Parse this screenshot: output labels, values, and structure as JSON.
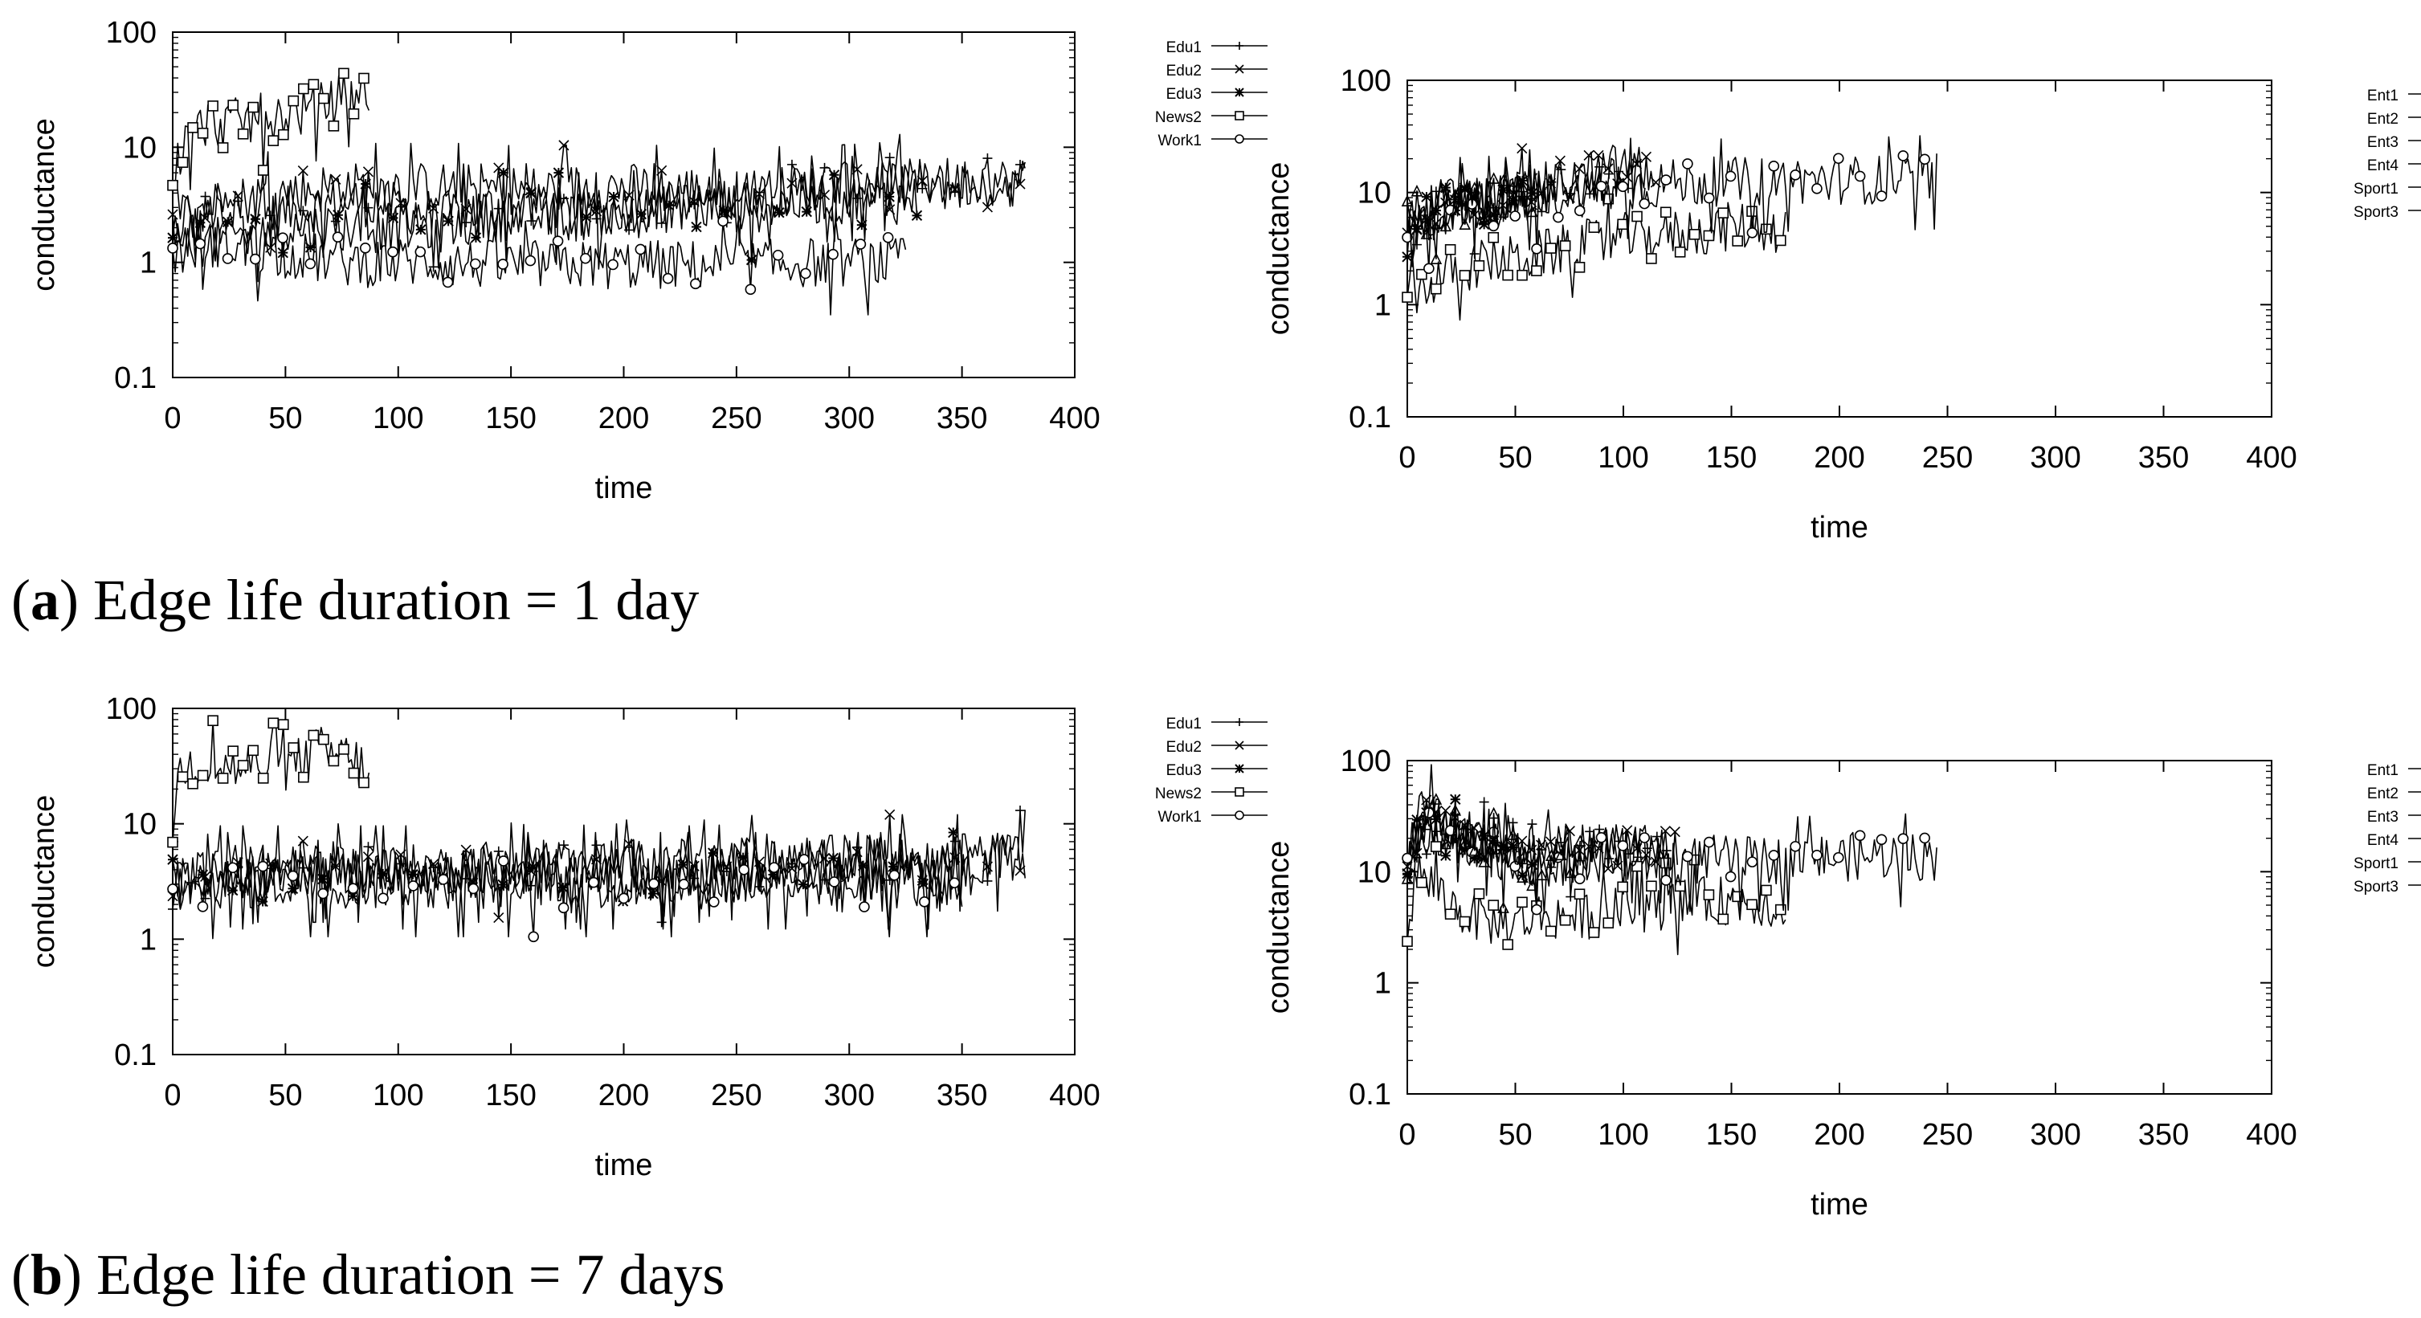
{
  "captions": {
    "a_letter": "a",
    "a_text": "Edge life duration = 1 day",
    "b_letter": "b",
    "b_text": "Edge life duration = 7 days"
  },
  "chart_data": [
    {
      "id": "a-left",
      "type": "line",
      "yscale": "log",
      "xlabel": "time",
      "ylabel": "conductance",
      "xlim": [
        0,
        400
      ],
      "ylim": [
        0.1,
        100
      ],
      "xticks": [
        0,
        50,
        100,
        150,
        200,
        250,
        300,
        350,
        400
      ],
      "yticks": [
        0.1,
        1,
        10,
        100
      ],
      "ytick_labels": [
        "0.1",
        "1",
        "10",
        "100"
      ],
      "series": [
        {
          "name": "Edu1",
          "marker": "plus",
          "length": 378,
          "x": [
            0,
            10,
            20,
            40,
            60,
            80,
            100,
            120,
            140,
            160,
            180,
            200,
            220,
            240,
            260,
            280,
            300,
            320,
            340,
            360,
            378
          ],
          "y": [
            4,
            2,
            3,
            2.5,
            3,
            3.5,
            3,
            2.5,
            3,
            3,
            2.5,
            3,
            3,
            3.5,
            4,
            4.5,
            5,
            5.5,
            4.5,
            5,
            5
          ]
        },
        {
          "name": "Edu2",
          "marker": "x",
          "length": 378,
          "x": [
            0,
            10,
            30,
            50,
            70,
            100,
            130,
            160,
            190,
            220,
            250,
            280,
            310,
            340,
            378
          ],
          "y": [
            2,
            3,
            3.5,
            4,
            4.5,
            4.5,
            4.5,
            4.2,
            4.5,
            4.3,
            4,
            4.2,
            4.5,
            5,
            5
          ]
        },
        {
          "name": "Edu3",
          "marker": "star",
          "length": 330,
          "x": [
            0,
            20,
            40,
            60,
            80,
            100,
            120,
            140,
            160,
            180,
            200,
            220,
            240,
            260,
            280,
            300,
            330
          ],
          "y": [
            2,
            1.5,
            2,
            2,
            2,
            2,
            2,
            2.5,
            2.5,
            2.5,
            2.5,
            3,
            3,
            3,
            3.5,
            3.5,
            3.5
          ]
        },
        {
          "name": "News2",
          "marker": "square",
          "length": 87,
          "x": [
            0,
            5,
            10,
            15,
            25,
            35,
            45,
            55,
            65,
            75,
            80,
            87
          ],
          "y": [
            6,
            10,
            14,
            16,
            16,
            17,
            19,
            20,
            22,
            27,
            30,
            27
          ]
        },
        {
          "name": "Work1",
          "marker": "circle",
          "length": 325,
          "x": [
            0,
            20,
            40,
            60,
            80,
            100,
            120,
            140,
            160,
            180,
            200,
            220,
            240,
            260,
            280,
            300,
            325
          ],
          "y": [
            1.2,
            1.5,
            1.3,
            1.1,
            1,
            1,
            1,
            0.95,
            0.95,
            0.95,
            0.95,
            0.95,
            0.95,
            0.95,
            1,
            1,
            1
          ]
        }
      ]
    },
    {
      "id": "a-right",
      "type": "line",
      "yscale": "log",
      "xlabel": "time",
      "ylabel": "conductance",
      "xlim": [
        0,
        400
      ],
      "ylim": [
        0.1,
        100
      ],
      "xticks": [
        0,
        50,
        100,
        150,
        200,
        250,
        300,
        350,
        400
      ],
      "yticks": [
        0.1,
        1,
        10,
        100
      ],
      "ytick_labels": [
        "0.1",
        "1",
        "10",
        "100"
      ],
      "series": [
        {
          "name": "Ent1",
          "marker": "plus",
          "length": 110,
          "x": [
            0,
            10,
            20,
            30,
            40,
            50,
            60,
            70,
            80,
            90,
            100,
            110
          ],
          "y": [
            4,
            6,
            7,
            8,
            9,
            10,
            10,
            11,
            11,
            12,
            13,
            12
          ]
        },
        {
          "name": "Ent2",
          "marker": "x",
          "length": 115,
          "x": [
            0,
            10,
            20,
            30,
            40,
            50,
            60,
            70,
            80,
            90,
            100,
            115
          ],
          "y": [
            5,
            6,
            7,
            8,
            9,
            10,
            11,
            12,
            14,
            15,
            18,
            14
          ]
        },
        {
          "name": "Ent3",
          "marker": "star",
          "length": 60,
          "x": [
            0,
            5,
            10,
            20,
            30,
            40,
            50,
            60
          ],
          "y": [
            3,
            5,
            7,
            9,
            8,
            8,
            9,
            9
          ]
        },
        {
          "name": "Ent4",
          "marker": "square",
          "length": 175,
          "x": [
            0,
            10,
            20,
            30,
            40,
            50,
            60,
            70,
            80,
            90,
            100,
            110,
            120,
            130,
            140,
            150,
            160,
            175
          ],
          "y": [
            1.2,
            1.5,
            2,
            2.2,
            2.5,
            2.5,
            2.8,
            3,
            3.5,
            3.5,
            4,
            4,
            4.2,
            4.5,
            4.5,
            5,
            5,
            4.6
          ]
        },
        {
          "name": "Sport1",
          "marker": "circle",
          "length": 245,
          "x": [
            0,
            10,
            20,
            40,
            60,
            80,
            100,
            120,
            140,
            160,
            180,
            200,
            220,
            245
          ],
          "y": [
            5,
            6,
            7,
            8,
            9,
            10,
            11,
            12,
            12.5,
            12.5,
            13,
            13,
            13,
            13.5
          ]
        },
        {
          "name": "Sport3",
          "marker": "triangle",
          "length": 60,
          "x": [
            0,
            10,
            20,
            30,
            40,
            50,
            60
          ],
          "y": [
            6,
            7,
            8,
            8,
            9,
            9,
            9.5
          ]
        }
      ]
    },
    {
      "id": "b-left",
      "type": "line",
      "yscale": "log",
      "xlabel": "time",
      "ylabel": "conductance",
      "xlim": [
        0,
        400
      ],
      "ylim": [
        0.1,
        100
      ],
      "xticks": [
        0,
        50,
        100,
        150,
        200,
        250,
        300,
        350,
        400
      ],
      "yticks": [
        0.1,
        1,
        10,
        100
      ],
      "ytick_labels": [
        "0.1",
        "1",
        "10",
        "100"
      ],
      "series": [
        {
          "name": "Edu1",
          "marker": "plus",
          "length": 378,
          "x": [
            0,
            20,
            40,
            60,
            80,
            100,
            120,
            140,
            160,
            180,
            200,
            220,
            240,
            260,
            280,
            300,
            320,
            340,
            360,
            378
          ],
          "y": [
            3,
            4,
            4,
            4,
            4,
            4,
            4,
            4,
            4,
            5,
            4,
            4,
            4,
            4.5,
            4.5,
            5,
            5,
            5,
            5,
            5.5
          ]
        },
        {
          "name": "Edu2",
          "marker": "x",
          "length": 378,
          "x": [
            0,
            20,
            40,
            60,
            80,
            100,
            120,
            140,
            160,
            180,
            200,
            220,
            240,
            260,
            280,
            300,
            320,
            340,
            360,
            378
          ],
          "y": [
            3,
            3.5,
            4,
            4.5,
            4,
            4,
            4,
            4.5,
            4,
            4,
            4.5,
            4.5,
            4.5,
            5,
            5,
            5,
            5,
            5,
            5,
            5
          ]
        },
        {
          "name": "Edu3",
          "marker": "star",
          "length": 355,
          "x": [
            0,
            20,
            40,
            60,
            80,
            100,
            120,
            140,
            160,
            180,
            200,
            220,
            240,
            260,
            280,
            300,
            320,
            355
          ],
          "y": [
            3,
            3.5,
            3.5,
            3.5,
            3.5,
            3.5,
            3.5,
            3.5,
            3.5,
            3.5,
            3.5,
            3.5,
            3.5,
            3.5,
            3.5,
            3.5,
            3.5,
            3.5
          ]
        },
        {
          "name": "News2",
          "marker": "square",
          "length": 87,
          "x": [
            0,
            3,
            5,
            10,
            20,
            30,
            40,
            50,
            60,
            65,
            70,
            80,
            87
          ],
          "y": [
            10,
            25,
            32,
            35,
            32,
            30,
            32,
            30,
            38,
            43,
            40,
            37,
            26
          ]
        },
        {
          "name": "Work1",
          "marker": "circle",
          "length": 350,
          "x": [
            0,
            20,
            40,
            60,
            80,
            100,
            120,
            140,
            160,
            180,
            200,
            220,
            240,
            260,
            280,
            300,
            320,
            350
          ],
          "y": [
            2,
            3,
            3,
            3,
            3,
            3,
            3,
            3,
            3,
            3,
            3,
            3,
            3,
            3,
            3,
            3,
            3,
            3
          ]
        }
      ]
    },
    {
      "id": "b-right",
      "type": "line",
      "yscale": "log",
      "xlabel": "time",
      "ylabel": "conductance",
      "xlim": [
        0,
        400
      ],
      "ylim": [
        0.1,
        100
      ],
      "xticks": [
        0,
        50,
        100,
        150,
        200,
        250,
        300,
        350,
        400
      ],
      "yticks": [
        0.1,
        1,
        10,
        100
      ],
      "ytick_labels": [
        "0.1",
        "1",
        "10",
        "100"
      ],
      "series": [
        {
          "name": "Ent1",
          "marker": "plus",
          "length": 120,
          "x": [
            0,
            10,
            20,
            40,
            60,
            80,
            100,
            120
          ],
          "y": [
            10,
            25,
            20,
            17,
            17,
            17,
            18,
            17
          ]
        },
        {
          "name": "Ent2",
          "marker": "x",
          "length": 125,
          "x": [
            0,
            10,
            20,
            40,
            60,
            80,
            100,
            125
          ],
          "y": [
            15,
            30,
            25,
            18,
            15,
            15,
            15,
            15
          ]
        },
        {
          "name": "Ent3",
          "marker": "star",
          "length": 60,
          "x": [
            0,
            5,
            10,
            20,
            30,
            40,
            50,
            60
          ],
          "y": [
            8,
            20,
            25,
            20,
            14,
            13,
            12,
            12
          ]
        },
        {
          "name": "Ent4",
          "marker": "square",
          "length": 175,
          "x": [
            0,
            5,
            10,
            20,
            30,
            40,
            50,
            60,
            80,
            100,
            120,
            140,
            160,
            175
          ],
          "y": [
            2,
            10,
            8,
            5,
            4,
            3.5,
            3.5,
            4,
            4,
            4.5,
            5,
            5.5,
            5.5,
            4.8
          ]
        },
        {
          "name": "Sport1",
          "marker": "circle",
          "length": 245,
          "x": [
            0,
            10,
            20,
            40,
            60,
            80,
            100,
            120,
            140,
            160,
            180,
            200,
            220,
            245
          ],
          "y": [
            10,
            40,
            20,
            15,
            13,
            12,
            13,
            12,
            13,
            12.5,
            13,
            13.5,
            14,
            13.5
          ]
        },
        {
          "name": "Sport3",
          "marker": "triangle",
          "length": 80,
          "x": [
            0,
            5,
            10,
            20,
            40,
            60,
            80
          ],
          "y": [
            10,
            30,
            40,
            25,
            14,
            12,
            12
          ]
        }
      ]
    }
  ]
}
